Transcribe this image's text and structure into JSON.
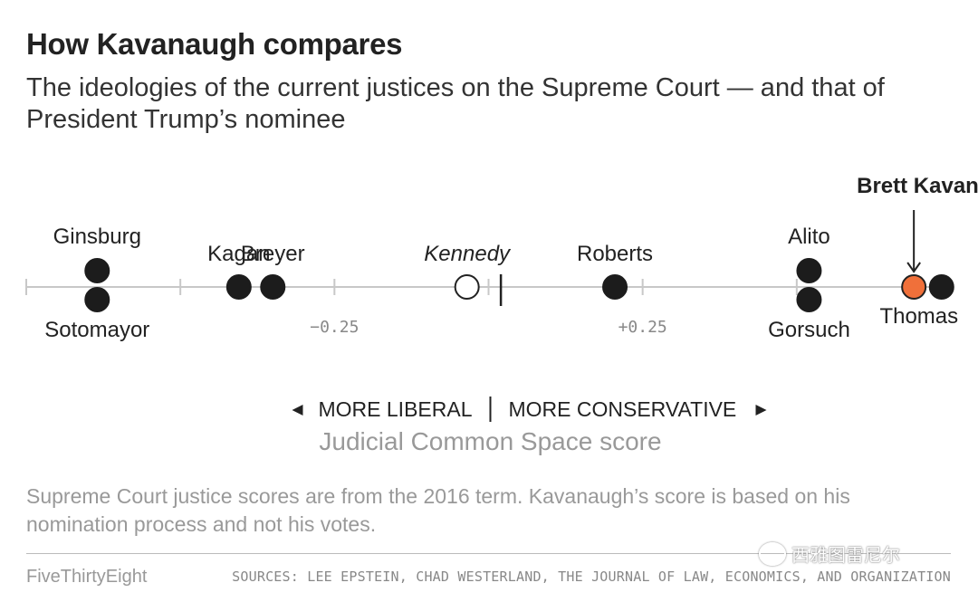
{
  "title": "How Kavanaugh compares",
  "subtitle": "The ideologies of the current justices on the Supreme Court — and that of President Trump’s nominee",
  "chart_data": {
    "type": "scatter",
    "xlabel": "Judicial Common Space score",
    "xlim": [
      -0.75,
      0.75
    ],
    "ticks": [
      -0.75,
      -0.5,
      -0.25,
      0.0,
      0.25,
      0.5,
      0.75
    ],
    "tick_labels": [
      "",
      "",
      "−0.25",
      "",
      "+0.25",
      "",
      ""
    ],
    "median_marker": 0.02,
    "direction_left": "MORE LIBERAL",
    "direction_right": "MORE CONSERVATIVE",
    "annotation": "Brett Kavanaugh",
    "points": [
      {
        "name": "Ginsburg",
        "x": -0.635,
        "stack": "upper",
        "label_pos": "above",
        "style": "filled"
      },
      {
        "name": "Sotomayor",
        "x": -0.635,
        "stack": "lower",
        "label_pos": "below",
        "style": "filled"
      },
      {
        "name": "Kagan",
        "x": -0.405,
        "stack": "single",
        "label_pos": "above",
        "style": "filled"
      },
      {
        "name": "Breyer",
        "x": -0.35,
        "stack": "single",
        "label_pos": "above",
        "style": "filled"
      },
      {
        "name": "Kennedy",
        "x": -0.035,
        "stack": "single",
        "label_pos": "above",
        "style": "open"
      },
      {
        "name": "Roberts",
        "x": 0.205,
        "stack": "single",
        "label_pos": "above",
        "style": "filled"
      },
      {
        "name": "Alito",
        "x": 0.52,
        "stack": "upper",
        "label_pos": "above",
        "style": "filled"
      },
      {
        "name": "Gorsuch",
        "x": 0.52,
        "stack": "lower",
        "label_pos": "below",
        "style": "filled"
      },
      {
        "name": "Brett Kavanaugh",
        "x": 0.69,
        "stack": "single",
        "label_pos": "none",
        "style": "highlight"
      },
      {
        "name": "Thomas",
        "x": 0.735,
        "stack": "single",
        "label_pos": "below",
        "style": "filled"
      }
    ]
  },
  "colors": {
    "dot": "#1c1c1c",
    "highlight": "#f0703a",
    "axis": "#c8c8c8",
    "muted": "#999999",
    "text": "#333333"
  },
  "note": "Supreme Court justice scores are from the 2016 term. Kavanaugh’s score is based on his nomination process and not his votes.",
  "footer": {
    "brand": "FiveThirtyEight",
    "sources": "SOURCES: LEE EPSTEIN, CHAD WESTERLAND, THE JOURNAL OF LAW, ECONOMICS, AND ORGANIZATION"
  },
  "watermark": {
    "text": "西雅图雷尼尔",
    "icon": "wechat-icon"
  }
}
